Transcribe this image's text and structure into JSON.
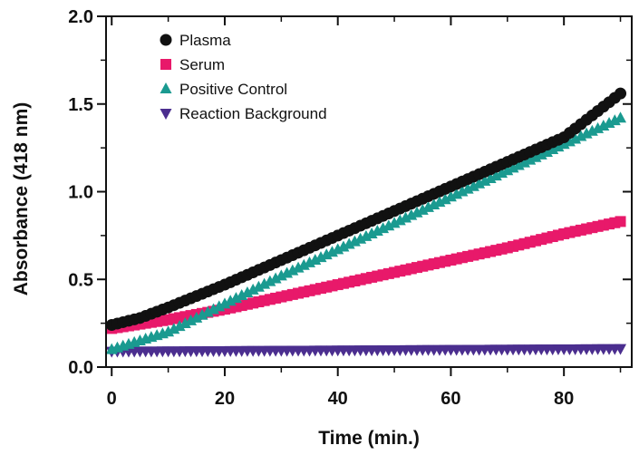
{
  "chart_data": {
    "type": "scatter",
    "title": "",
    "xlabel": "Time (min.)",
    "ylabel": "Absorbance   (418 nm)",
    "xlim": [
      -1,
      92
    ],
    "ylim": [
      0,
      2.0
    ],
    "x_ticks": [
      0,
      20,
      40,
      60,
      80
    ],
    "y_ticks": [
      0,
      0.5,
      1.0,
      1.5,
      2.0
    ],
    "x_tick_labels": [
      "0",
      "20",
      "40",
      "60",
      "80"
    ],
    "y_tick_labels": [
      "0.0",
      "0.5",
      "1.0",
      "1.5",
      "2.0"
    ],
    "grid": false,
    "legend_position": "top-left",
    "x": {
      "start": 0,
      "end": 90,
      "step": 1
    },
    "series": [
      {
        "name": "Plasma",
        "marker": "circle",
        "color": "#111111",
        "points": [
          [
            0,
            0.24
          ],
          [
            5,
            0.28
          ],
          [
            10,
            0.34
          ],
          [
            20,
            0.47
          ],
          [
            30,
            0.61
          ],
          [
            40,
            0.75
          ],
          [
            50,
            0.89
          ],
          [
            60,
            1.03
          ],
          [
            70,
            1.17
          ],
          [
            80,
            1.31
          ],
          [
            90,
            1.56
          ]
        ]
      },
      {
        "name": "Serum",
        "marker": "square",
        "color": "#e8196a",
        "points": [
          [
            0,
            0.22
          ],
          [
            10,
            0.27
          ],
          [
            20,
            0.33
          ],
          [
            30,
            0.4
          ],
          [
            40,
            0.47
          ],
          [
            50,
            0.54
          ],
          [
            60,
            0.61
          ],
          [
            70,
            0.68
          ],
          [
            80,
            0.76
          ],
          [
            90,
            0.83
          ]
        ]
      },
      {
        "name": "Positive Control",
        "marker": "triangle-up",
        "color": "#1a9a90",
        "points": [
          [
            0,
            0.1
          ],
          [
            10,
            0.2
          ],
          [
            20,
            0.36
          ],
          [
            30,
            0.52
          ],
          [
            40,
            0.67
          ],
          [
            50,
            0.82
          ],
          [
            60,
            0.97
          ],
          [
            70,
            1.12
          ],
          [
            80,
            1.27
          ],
          [
            90,
            1.42
          ]
        ]
      },
      {
        "name": "Reaction Background",
        "marker": "triangle-down",
        "color": "#4b2e8f",
        "points": [
          [
            0,
            0.09
          ],
          [
            30,
            0.095
          ],
          [
            60,
            0.1
          ],
          [
            90,
            0.105
          ]
        ]
      }
    ]
  }
}
